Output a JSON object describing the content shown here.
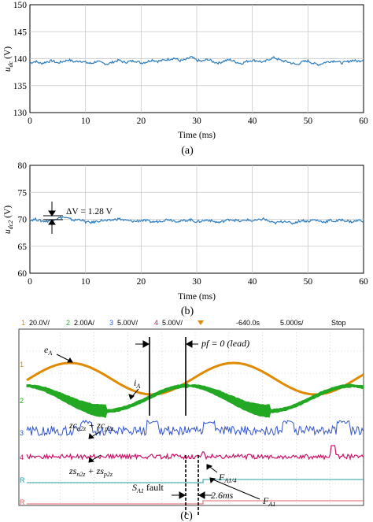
{
  "chart_data": [
    {
      "type": "line",
      "caption": "(a)",
      "xlabel": "Time (ms)",
      "ylabel_main": "u",
      "ylabel_sub": "dc",
      "ylabel_unit": "(V)",
      "xlim": [
        0,
        60
      ],
      "ylim": [
        130,
        150
      ],
      "xticks": [
        0,
        10,
        20,
        30,
        40,
        50,
        60
      ],
      "yticks": [
        130,
        135,
        140,
        145,
        150
      ],
      "grid": true,
      "color": "#2a7bbf",
      "series": [
        {
          "x": [
            0,
            1,
            2,
            3,
            4,
            5,
            6,
            7,
            8,
            9,
            10,
            11,
            12,
            13,
            14,
            15,
            16,
            17,
            18,
            19,
            20,
            21,
            22,
            23,
            24,
            25,
            26,
            27,
            28,
            29,
            30,
            31,
            32,
            33,
            34,
            35,
            36,
            37,
            38,
            39,
            40,
            41,
            42,
            43,
            44,
            45,
            46,
            47,
            48,
            49,
            50,
            51,
            52,
            53,
            54,
            55,
            56,
            57,
            58,
            59,
            60
          ],
          "values": [
            139.2,
            139.5,
            139.1,
            139.4,
            139.6,
            139.2,
            139.5,
            139.8,
            139.4,
            139.6,
            139.3,
            139.1,
            139.5,
            139.2,
            139.0,
            139.4,
            139.7,
            139.3,
            139.5,
            139.6,
            139.2,
            139.4,
            139.8,
            139.5,
            139.7,
            139.9,
            140.1,
            139.6,
            139.8,
            140.3,
            139.7,
            139.5,
            139.9,
            139.4,
            139.2,
            139.6,
            139.8,
            139.4,
            139.1,
            139.5,
            139.7,
            139.6,
            139.3,
            139.9,
            140.2,
            139.7,
            139.5,
            139.2,
            138.9,
            139.4,
            139.6,
            139.1,
            138.9,
            139.3,
            139.5,
            139.6,
            139.2,
            139.4,
            139.7,
            139.5,
            139.8
          ]
        }
      ]
    },
    {
      "type": "line",
      "caption": "(b)",
      "xlabel": "Time (ms)",
      "ylabel_main": "u",
      "ylabel_sub": "dc2",
      "ylabel_unit": "(V)",
      "xlim": [
        0,
        60
      ],
      "ylim": [
        60,
        80
      ],
      "xticks": [
        0,
        10,
        20,
        30,
        40,
        50,
        60
      ],
      "yticks": [
        60,
        65,
        70,
        75,
        80
      ],
      "grid": true,
      "color": "#2a7bbf",
      "annotation": "ΔV = 1.28 V",
      "series": [
        {
          "x": [
            0,
            1,
            2,
            3,
            4,
            5,
            6,
            7,
            8,
            9,
            10,
            11,
            12,
            13,
            14,
            15,
            16,
            17,
            18,
            19,
            20,
            21,
            22,
            23,
            24,
            25,
            26,
            27,
            28,
            29,
            30,
            31,
            32,
            33,
            34,
            35,
            36,
            37,
            38,
            39,
            40,
            41,
            42,
            43,
            44,
            45,
            46,
            47,
            48,
            49,
            50,
            51,
            52,
            53,
            54,
            55,
            56,
            57,
            58,
            59,
            60
          ],
          "values": [
            69.8,
            70.0,
            69.7,
            69.6,
            69.9,
            70.2,
            70.4,
            70.1,
            69.8,
            70.0,
            69.5,
            69.4,
            69.6,
            69.8,
            69.7,
            69.9,
            70.1,
            69.8,
            69.7,
            69.6,
            69.8,
            69.7,
            69.5,
            69.6,
            69.8,
            70.0,
            69.7,
            69.6,
            69.8,
            69.9,
            69.5,
            69.7,
            69.9,
            69.6,
            69.4,
            69.7,
            70.0,
            69.8,
            69.6,
            69.9,
            69.7,
            69.8,
            70.1,
            69.6,
            69.3,
            69.5,
            69.7,
            69.2,
            69.5,
            69.8,
            69.6,
            69.9,
            69.7,
            69.5,
            69.8,
            69.6,
            69.9,
            69.7,
            69.5,
            69.8,
            69.7
          ]
        }
      ]
    },
    {
      "type": "line",
      "caption": "(c)",
      "header": {
        "ch1": "20.0V/",
        "ch2": "2.00A/",
        "ch3": "5.00V/",
        "ch4": "5.00V/",
        "offset": "-640.0s",
        "timebase": "5.000s/",
        "status": "Stop"
      },
      "channel_colors": {
        "ch1": "#e08a00",
        "ch2": "#22a822",
        "ch3": "#3355cc",
        "ch4": "#cc1166",
        "ref_a": "#20a0a0",
        "ref_b": "#e0606a"
      },
      "labels": {
        "ea": "e",
        "ea_sub": "A",
        "ia": "i",
        "ia_sub": "A",
        "pf": "pf = 0 (lead)",
        "zc": "zc",
        "zc_sub1": "n2z",
        "zc_plus": " + zc",
        "zc_sub2": "p2z",
        "zs": "zs",
        "zs_sub1": "n2z",
        "zs_plus": " + zs",
        "zs_sub2": "p2z",
        "fa14": "F",
        "fa14_sub": "A1/4",
        "sa1": "S",
        "sa1_sub": "A1",
        "sa1_suffix": " fault",
        "dt": "2.6ms",
        "fa1": "F",
        "fa1_sub": "A1"
      },
      "channel_markers": [
        "1",
        "2",
        "3",
        "4",
        "R",
        "R"
      ]
    }
  ]
}
